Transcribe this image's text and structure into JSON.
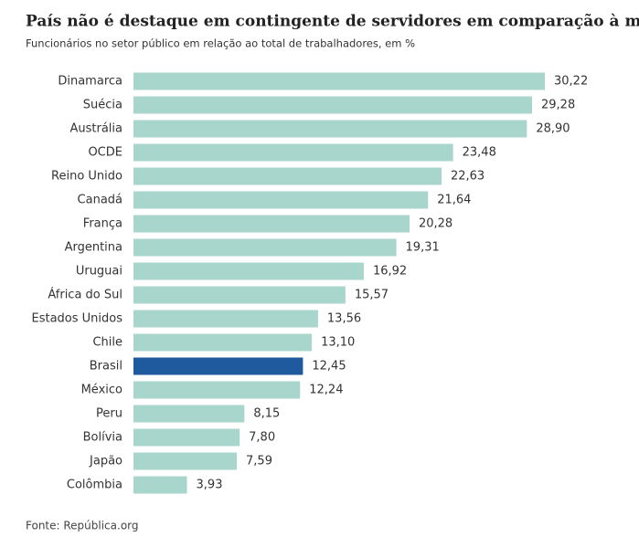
{
  "chart_data": {
    "type": "bar",
    "orientation": "horizontal",
    "title": "País não é destaque em contingente de servidores em comparação à média global",
    "subtitle": "Funcionários no setor público em relação ao total de trabalhadores, em %",
    "source": "Fonte: República.org",
    "categories": [
      "Dinamarca",
      "Suécia",
      "Austrália",
      "OCDE",
      "Reino Unido",
      "Canadá",
      "França",
      "Argentina",
      "Uruguai",
      "África do Sul",
      "Estados Unidos",
      "Chile",
      "Brasil",
      "México",
      "Peru",
      "Bolívia",
      "Japão",
      "Colômbia"
    ],
    "values": [
      30.22,
      29.28,
      28.9,
      23.48,
      22.63,
      21.64,
      20.28,
      19.31,
      16.92,
      15.57,
      13.56,
      13.1,
      12.45,
      12.24,
      8.15,
      7.8,
      7.59,
      3.93
    ],
    "value_labels": [
      "30,22",
      "29,28",
      "28,90",
      "23,48",
      "22,63",
      "21,64",
      "20,28",
      "19,31",
      "16,92",
      "15,57",
      "13,56",
      "13,10",
      "12,45",
      "12,24",
      "8,15",
      "7,80",
      "7,59",
      "3,93"
    ],
    "colors": [
      "#a8d5cc",
      "#a8d5cc",
      "#a8d5cc",
      "#a8d5cc",
      "#a8d5cc",
      "#a8d5cc",
      "#a8d5cc",
      "#a8d5cc",
      "#a8d5cc",
      "#a8d5cc",
      "#a8d5cc",
      "#a8d5cc",
      "#1f5a9e",
      "#a8d5cc",
      "#a8d5cc",
      "#a8d5cc",
      "#a8d5cc",
      "#a8d5cc"
    ]
  }
}
